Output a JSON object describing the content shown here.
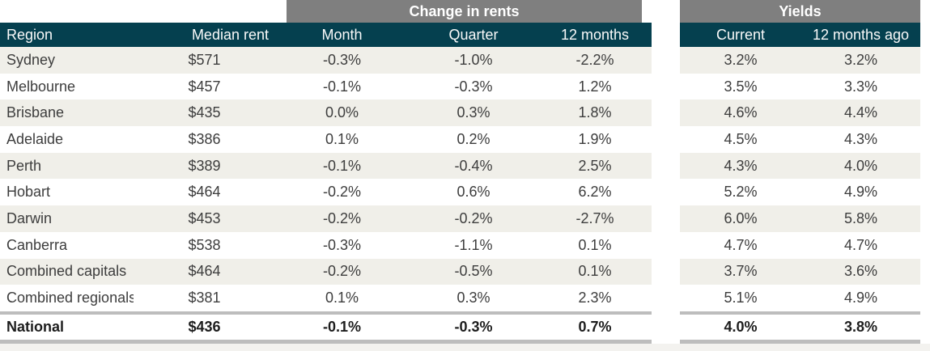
{
  "table": {
    "group_headers": {
      "change_in_rents": "Change in rents",
      "yields": "Yields"
    },
    "columns": {
      "region": "Region",
      "median_rent": "Median rent",
      "month": "Month",
      "quarter": "Quarter",
      "twelve_months": "12 months",
      "current": "Current",
      "twelve_months_ago": "12 months ago"
    },
    "rows": [
      {
        "region": "Sydney",
        "median_rent": "$571",
        "month": "-0.3%",
        "quarter": "-1.0%",
        "twelve_months": "-2.2%",
        "current": "3.2%",
        "twelve_months_ago": "3.2%"
      },
      {
        "region": "Melbourne",
        "median_rent": "$457",
        "month": "-0.1%",
        "quarter": "-0.3%",
        "twelve_months": "1.2%",
        "current": "3.5%",
        "twelve_months_ago": "3.3%"
      },
      {
        "region": "Brisbane",
        "median_rent": "$435",
        "month": "0.0%",
        "quarter": "0.3%",
        "twelve_months": "1.8%",
        "current": "4.6%",
        "twelve_months_ago": "4.4%"
      },
      {
        "region": "Adelaide",
        "median_rent": "$386",
        "month": "0.1%",
        "quarter": "0.2%",
        "twelve_months": "1.9%",
        "current": "4.5%",
        "twelve_months_ago": "4.3%"
      },
      {
        "region": "Perth",
        "median_rent": "$389",
        "month": "-0.1%",
        "quarter": "-0.4%",
        "twelve_months": "2.5%",
        "current": "4.3%",
        "twelve_months_ago": "4.0%"
      },
      {
        "region": "Hobart",
        "median_rent": "$464",
        "month": "-0.2%",
        "quarter": "0.6%",
        "twelve_months": "6.2%",
        "current": "5.2%",
        "twelve_months_ago": "4.9%"
      },
      {
        "region": "Darwin",
        "median_rent": "$453",
        "month": "-0.2%",
        "quarter": "-0.2%",
        "twelve_months": "-2.7%",
        "current": "6.0%",
        "twelve_months_ago": "5.8%"
      },
      {
        "region": "Canberra",
        "median_rent": "$538",
        "month": "-0.3%",
        "quarter": "-1.1%",
        "twelve_months": "0.1%",
        "current": "4.7%",
        "twelve_months_ago": "4.7%"
      },
      {
        "region": "Combined capitals",
        "median_rent": "$464",
        "month": "-0.2%",
        "quarter": "-0.5%",
        "twelve_months": "0.1%",
        "current": "3.7%",
        "twelve_months_ago": "3.6%"
      },
      {
        "region": "Combined regionals",
        "median_rent": "$381",
        "month": "0.1%",
        "quarter": "0.3%",
        "twelve_months": "2.3%",
        "current": "5.1%",
        "twelve_months_ago": "4.9%"
      }
    ],
    "total": {
      "region": "National",
      "median_rent": "$436",
      "month": "-0.1%",
      "quarter": "-0.3%",
      "twelve_months": "0.7%",
      "current": "4.0%",
      "twelve_months_ago": "3.8%"
    }
  },
  "colors": {
    "header_teal": "#05404f",
    "band_gray": "#7f7f7f",
    "row_stripe": "#f0efe9",
    "border_gray": "#bdbdbd",
    "body_text": "#3d3d3d"
  }
}
